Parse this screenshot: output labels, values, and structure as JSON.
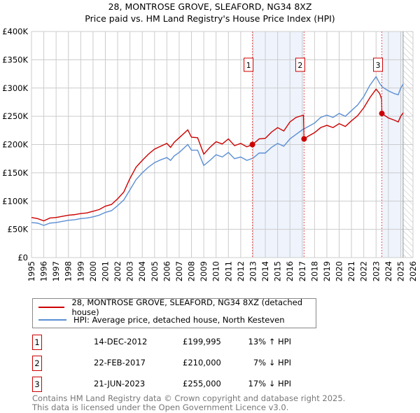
{
  "chart_data": {
    "type": "line",
    "title": "28, MONTROSE GROVE, SLEAFORD, NG34 8XZ",
    "subtitle": "Price paid vs. HM Land Registry's House Price Index (HPI)",
    "xlim": [
      1995,
      2026
    ],
    "ylim": [
      0,
      400000
    ],
    "y_ticks": [
      {
        "v": 0,
        "label": "£0"
      },
      {
        "v": 50000,
        "label": "£50K"
      },
      {
        "v": 100000,
        "label": "£100K"
      },
      {
        "v": 150000,
        "label": "£150K"
      },
      {
        "v": 200000,
        "label": "£200K"
      },
      {
        "v": 250000,
        "label": "£250K"
      },
      {
        "v": 300000,
        "label": "£300K"
      },
      {
        "v": 350000,
        "label": "£350K"
      },
      {
        "v": 400000,
        "label": "£400K"
      }
    ],
    "x_ticks": [
      "1995",
      "1996",
      "1997",
      "1998",
      "1999",
      "2000",
      "2001",
      "2002",
      "2003",
      "2004",
      "2005",
      "2006",
      "2007",
      "2008",
      "2009",
      "2010",
      "2011",
      "2012",
      "2013",
      "2014",
      "2015",
      "2016",
      "2017",
      "2018",
      "2019",
      "2020",
      "2021",
      "2022",
      "2023",
      "2024",
      "2025",
      "2026"
    ],
    "shaded_ranges": [
      [
        2012.95,
        2017.15
      ],
      [
        2023.47,
        2025.2
      ]
    ],
    "data_end": 2025.2,
    "series": [
      {
        "name": "HPI: Average price, detached house, North Kesteven",
        "color": "#5b8fd4",
        "points": [
          [
            1995,
            62
          ],
          [
            1995.5,
            61
          ],
          [
            1996,
            57
          ],
          [
            1996.5,
            61
          ],
          [
            1997,
            62
          ],
          [
            1997.5,
            64
          ],
          [
            1998,
            66
          ],
          [
            1998.5,
            67
          ],
          [
            1999,
            69
          ],
          [
            1999.5,
            70
          ],
          [
            2000,
            72
          ],
          [
            2000.5,
            75
          ],
          [
            2001,
            80
          ],
          [
            2001.5,
            83
          ],
          [
            2002,
            92
          ],
          [
            2002.5,
            102
          ],
          [
            2003,
            120
          ],
          [
            2003.5,
            138
          ],
          [
            2004,
            150
          ],
          [
            2004.5,
            160
          ],
          [
            2005,
            168
          ],
          [
            2005.5,
            173
          ],
          [
            2006,
            177
          ],
          [
            2006.3,
            172
          ],
          [
            2006.6,
            180
          ],
          [
            2007,
            186
          ],
          [
            2007.7,
            200
          ],
          [
            2008,
            190
          ],
          [
            2008.5,
            190
          ],
          [
            2009,
            163
          ],
          [
            2009.5,
            172
          ],
          [
            2010,
            182
          ],
          [
            2010.5,
            178
          ],
          [
            2011,
            186
          ],
          [
            2011.5,
            175
          ],
          [
            2012,
            178
          ],
          [
            2012.5,
            172
          ],
          [
            2013,
            176
          ],
          [
            2013.5,
            185
          ],
          [
            2014,
            185
          ],
          [
            2014.5,
            195
          ],
          [
            2015,
            202
          ],
          [
            2015.5,
            197
          ],
          [
            2016,
            210
          ],
          [
            2016.5,
            218
          ],
          [
            2017,
            226
          ],
          [
            2017.5,
            232
          ],
          [
            2018,
            238
          ],
          [
            2018.5,
            248
          ],
          [
            2019,
            252
          ],
          [
            2019.5,
            248
          ],
          [
            2020,
            255
          ],
          [
            2020.5,
            250
          ],
          [
            2021,
            260
          ],
          [
            2021.5,
            270
          ],
          [
            2022,
            285
          ],
          [
            2022.5,
            305
          ],
          [
            2023,
            320
          ],
          [
            2023.3,
            308
          ],
          [
            2023.5,
            302
          ],
          [
            2024,
            295
          ],
          [
            2024.5,
            290
          ],
          [
            2024.8,
            288
          ],
          [
            2025,
            300
          ],
          [
            2025.2,
            307
          ]
        ]
      },
      {
        "name": "28, MONTROSE GROVE, SLEAFORD, NG34 8XZ (detached house)",
        "color": "#cc0000",
        "points": [
          [
            1995,
            71
          ],
          [
            1995.5,
            69
          ],
          [
            1996,
            65
          ],
          [
            1996.5,
            70
          ],
          [
            1997,
            71
          ],
          [
            1997.5,
            73
          ],
          [
            1998,
            75
          ],
          [
            1998.5,
            76
          ],
          [
            1999,
            78
          ],
          [
            1999.5,
            79
          ],
          [
            2000,
            82
          ],
          [
            2000.5,
            85
          ],
          [
            2001,
            91
          ],
          [
            2001.5,
            94
          ],
          [
            2002,
            104
          ],
          [
            2002.5,
            116
          ],
          [
            2003,
            140
          ],
          [
            2003.5,
            160
          ],
          [
            2004,
            172
          ],
          [
            2004.5,
            183
          ],
          [
            2005,
            192
          ],
          [
            2005.5,
            197
          ],
          [
            2006,
            202
          ],
          [
            2006.3,
            195
          ],
          [
            2006.6,
            204
          ],
          [
            2007,
            212
          ],
          [
            2007.7,
            226
          ],
          [
            2008,
            213
          ],
          [
            2008.5,
            212
          ],
          [
            2009,
            183
          ],
          [
            2009.5,
            195
          ],
          [
            2010,
            205
          ],
          [
            2010.5,
            201
          ],
          [
            2011,
            210
          ],
          [
            2011.5,
            198
          ],
          [
            2012,
            202
          ],
          [
            2012.5,
            196
          ],
          [
            2012.95,
            200
          ],
          [
            2013.5,
            210
          ],
          [
            2014,
            211
          ],
          [
            2014.5,
            222
          ],
          [
            2015,
            230
          ],
          [
            2015.5,
            224
          ],
          [
            2016,
            240
          ],
          [
            2016.5,
            248
          ],
          [
            2017.1,
            252
          ],
          [
            2017.15,
            210
          ],
          [
            2017.5,
            215
          ],
          [
            2018,
            221
          ],
          [
            2018.5,
            230
          ],
          [
            2019,
            234
          ],
          [
            2019.5,
            230
          ],
          [
            2020,
            237
          ],
          [
            2020.5,
            232
          ],
          [
            2021,
            242
          ],
          [
            2021.5,
            251
          ],
          [
            2022,
            265
          ],
          [
            2022.5,
            283
          ],
          [
            2023,
            298
          ],
          [
            2023.3,
            290
          ],
          [
            2023.45,
            280
          ],
          [
            2023.47,
            255
          ],
          [
            2024,
            247
          ],
          [
            2024.5,
            243
          ],
          [
            2024.8,
            240
          ],
          [
            2025,
            250
          ],
          [
            2025.2,
            256
          ]
        ]
      }
    ],
    "sales": [
      {
        "n": "1",
        "x": 2012.95,
        "y": 199995
      },
      {
        "n": "2",
        "x": 2017.15,
        "y": 210000
      },
      {
        "n": "3",
        "x": 2023.47,
        "y": 255000
      }
    ]
  },
  "legend": {
    "property": "28, MONTROSE GROVE, SLEAFORD, NG34 8XZ (detached house)",
    "hpi": "HPI: Average price, detached house, North Kesteven"
  },
  "transactions": [
    {
      "n": "1",
      "date": "14-DEC-2012",
      "price": "£199,995",
      "hpi": "13% ↑ HPI"
    },
    {
      "n": "2",
      "date": "22-FEB-2017",
      "price": "£210,000",
      "hpi": "7% ↓ HPI"
    },
    {
      "n": "3",
      "date": "21-JUN-2023",
      "price": "£255,000",
      "hpi": "17% ↓ HPI"
    }
  ],
  "footer": {
    "line1": "Contains HM Land Registry data © Crown copyright and database right 2025.",
    "line2": "This data is licensed under the Open Government Licence v3.0."
  }
}
